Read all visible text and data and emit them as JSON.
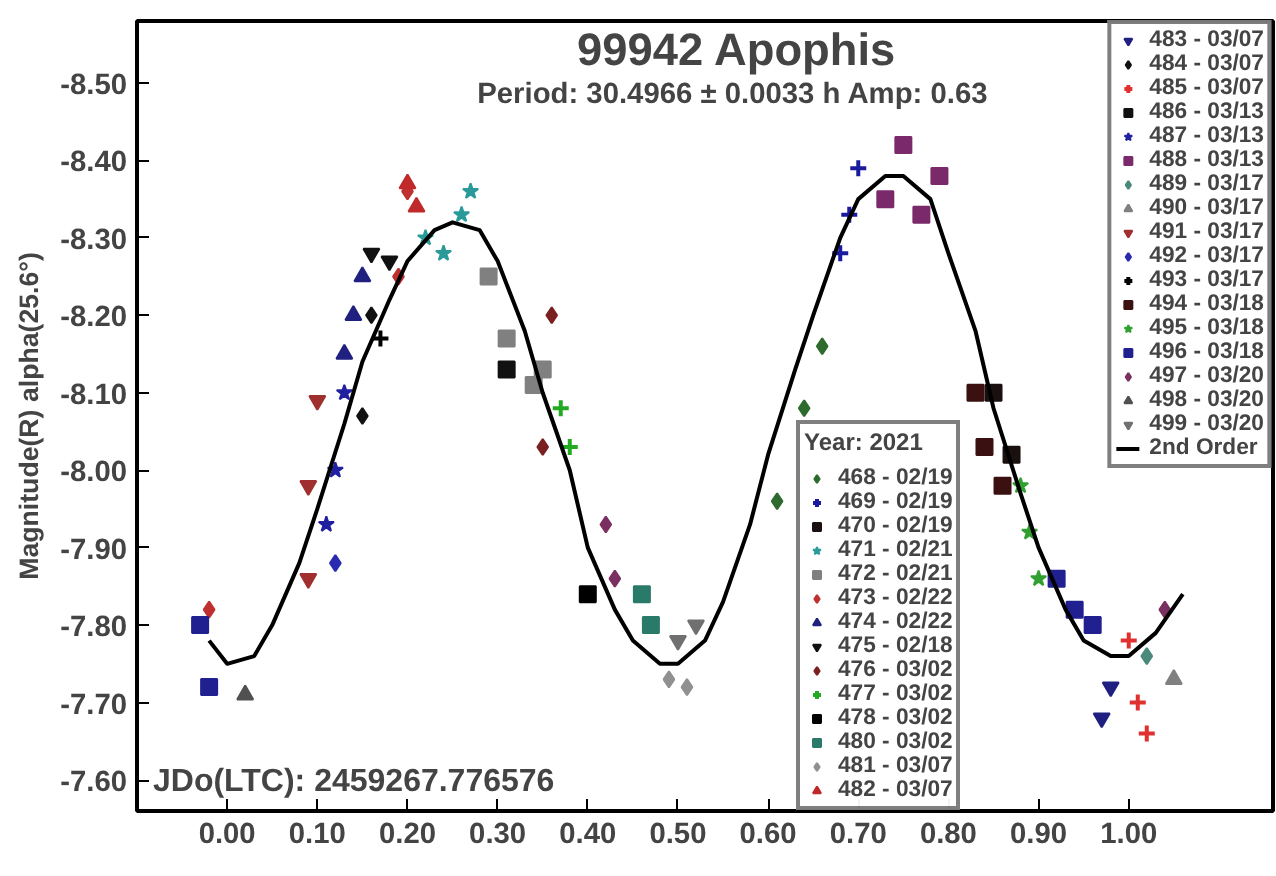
{
  "chart_data": {
    "type": "scatter",
    "title": "99942 Apophis",
    "subtitle": "Period: 30.4966 ± 0.0033 h  Amp: 0.63",
    "ylabel": "Magnitude(R) alpha(25.6°)",
    "legend_title": "Year: 2021",
    "legend": "right",
    "grid": false,
    "annotations": [
      "JDo(LTC): 2459267.776576"
    ],
    "xlim": [
      -0.1,
      1.16
    ],
    "ylim": [
      -7.56,
      -8.58
    ],
    "xticks": [
      {
        "value": 0,
        "label": "0.00"
      },
      {
        "value": 0.1,
        "label": "0.10"
      },
      {
        "value": 0.2,
        "label": "0.20"
      },
      {
        "value": 0.3,
        "label": "0.30"
      },
      {
        "value": 0.4,
        "label": "0.40"
      },
      {
        "value": 0.5,
        "label": "0.50"
      },
      {
        "value": 0.6,
        "label": "0.60"
      },
      {
        "value": 0.7,
        "label": "0.70"
      },
      {
        "value": 0.8,
        "label": "0.80"
      },
      {
        "value": 0.9,
        "label": "0.90"
      },
      {
        "value": 1,
        "label": "1.00"
      }
    ],
    "yticks": [
      {
        "value": -8.5,
        "label": "-8.50"
      },
      {
        "value": -8.4,
        "label": "-8.40"
      },
      {
        "value": -8.3,
        "label": "-8.30"
      },
      {
        "value": -8.2,
        "label": "-8.20"
      },
      {
        "value": -8.1,
        "label": "-8.10"
      },
      {
        "value": -8.0,
        "label": "-8.00"
      },
      {
        "value": -7.9,
        "label": "-7.90"
      },
      {
        "value": -7.8,
        "label": "-7.80"
      },
      {
        "value": -7.7,
        "label": "-7.70"
      },
      {
        "value": -7.6,
        "label": "-7.60"
      }
    ],
    "series": [
      {
        "name": "468 - 02/19",
        "color": "#2e6b2e",
        "marker": "diamond",
        "x": [
          0.61,
          0.64,
          0.66
        ],
        "values": [
          -7.96,
          -8.08,
          -8.16
        ]
      },
      {
        "name": "469 - 02/19",
        "color": "#1a1aa0",
        "marker": "cross",
        "x": [
          0.68,
          0.69,
          0.7
        ],
        "values": [
          -8.28,
          -8.33,
          -8.39
        ]
      },
      {
        "name": "470 - 02/19",
        "color": "#1a1010",
        "marker": "square",
        "x": [
          0.85,
          0.87
        ],
        "values": [
          -8.1,
          -8.02
        ]
      },
      {
        "name": "471 - 02/21",
        "color": "#2a9a9a",
        "marker": "star",
        "x": [
          0.22,
          0.24,
          0.26,
          0.27
        ],
        "values": [
          -8.3,
          -8.28,
          -8.33,
          -8.36
        ]
      },
      {
        "name": "472 - 02/21",
        "color": "#808080",
        "marker": "square",
        "x": [
          0.29,
          0.31,
          0.34,
          0.35
        ],
        "values": [
          -8.25,
          -8.17,
          -8.11,
          -8.13
        ]
      },
      {
        "name": "473 - 02/22",
        "color": "#c03030",
        "marker": "diamond",
        "x": [
          -0.02,
          0.19,
          0.2
        ],
        "values": [
          -7.82,
          -8.25,
          -8.36
        ]
      },
      {
        "name": "474 - 02/22",
        "color": "#202080",
        "marker": "triangle",
        "x": [
          0.13,
          0.14,
          0.15
        ],
        "values": [
          -8.15,
          -8.2,
          -8.25
        ]
      },
      {
        "name": "475 - 02/18",
        "color": "#111111",
        "marker": "triangle_down",
        "x": [
          0.16,
          0.18
        ],
        "values": [
          -8.28,
          -8.27
        ]
      },
      {
        "name": "476 - 03/02",
        "color": "#7a2020",
        "marker": "diamond",
        "x": [
          0.35,
          0.36
        ],
        "values": [
          -8.03,
          -8.2
        ]
      },
      {
        "name": "477 - 03/02",
        "color": "#22aa22",
        "marker": "cross",
        "x": [
          0.37,
          0.38
        ],
        "values": [
          -8.08,
          -8.03
        ]
      },
      {
        "name": "478 - 03/02",
        "color": "#000000",
        "marker": "square",
        "x": [
          0.4
        ],
        "values": [
          -7.84
        ]
      },
      {
        "name": "480 - 03/02",
        "color": "#2a7a6a",
        "marker": "square",
        "x": [
          0.46,
          0.47
        ],
        "values": [
          -7.84,
          -7.8
        ]
      },
      {
        "name": "481 - 03/07",
        "color": "#909090",
        "marker": "diamond",
        "x": [
          0.49,
          0.51
        ],
        "values": [
          -7.73,
          -7.72
        ]
      },
      {
        "name": "482 - 03/07",
        "color": "#c02a2a",
        "marker": "triangle",
        "x": [
          0.2,
          0.21
        ],
        "values": [
          -8.37,
          -8.34
        ]
      },
      {
        "name": "483 - 03/07",
        "color": "#202080",
        "marker": "triangle_down",
        "x": [
          0.97,
          0.98
        ],
        "values": [
          -7.68,
          -7.72
        ]
      },
      {
        "name": "484 - 03/07",
        "color": "#111111",
        "marker": "diamond",
        "x": [
          0.15,
          0.16
        ],
        "values": [
          -8.07,
          -8.2
        ]
      },
      {
        "name": "485 - 03/07",
        "color": "#e03030",
        "marker": "cross",
        "x": [
          1.0,
          1.01,
          1.02
        ],
        "values": [
          -7.78,
          -7.7,
          -7.66
        ]
      },
      {
        "name": "486 - 03/13",
        "color": "#111111",
        "marker": "square",
        "x": [
          0.31
        ],
        "values": [
          -8.13
        ]
      },
      {
        "name": "487 - 03/13",
        "color": "#2020a0",
        "marker": "star",
        "x": [
          0.11,
          0.12,
          0.13
        ],
        "values": [
          -7.93,
          -8.0,
          -8.1
        ]
      },
      {
        "name": "488 - 03/13",
        "color": "#7a2a6a",
        "marker": "square",
        "x": [
          0.73,
          0.75,
          0.77,
          0.79
        ],
        "values": [
          -8.35,
          -8.42,
          -8.33,
          -8.38
        ]
      },
      {
        "name": "489 - 03/17",
        "color": "#4a8a7a",
        "marker": "diamond",
        "x": [
          1.02
        ],
        "values": [
          -7.76
        ]
      },
      {
        "name": "490 - 03/17",
        "color": "#808080",
        "marker": "triangle",
        "x": [
          1.05
        ],
        "values": [
          -7.73
        ]
      },
      {
        "name": "491 - 03/17",
        "color": "#a03030",
        "marker": "triangle_down",
        "x": [
          0.09,
          0.09,
          0.1
        ],
        "values": [
          -7.86,
          -7.98,
          -8.09
        ]
      },
      {
        "name": "492 - 03/17",
        "color": "#2a2ab0",
        "marker": "diamond",
        "x": [
          0.12
        ],
        "values": [
          -7.88
        ]
      },
      {
        "name": "493 - 03/17",
        "color": "#000000",
        "marker": "cross",
        "x": [
          0.17
        ],
        "values": [
          -8.17
        ]
      },
      {
        "name": "494 - 03/18",
        "color": "#3a1010",
        "marker": "square",
        "x": [
          0.83,
          0.84,
          0.86
        ],
        "values": [
          -8.1,
          -8.03,
          -7.98
        ]
      },
      {
        "name": "495 - 03/18",
        "color": "#30a030",
        "marker": "star",
        "x": [
          0.88,
          0.89,
          0.9
        ],
        "values": [
          -7.98,
          -7.92,
          -7.86
        ]
      },
      {
        "name": "496 - 03/18",
        "color": "#202090",
        "marker": "square",
        "x": [
          -0.03,
          -0.02,
          0.92,
          0.94,
          0.96
        ],
        "values": [
          -7.8,
          -7.72,
          -7.86,
          -7.82,
          -7.8
        ]
      },
      {
        "name": "497 - 03/20",
        "color": "#7a3060",
        "marker": "diamond",
        "x": [
          0.42,
          0.43,
          1.04
        ],
        "values": [
          -7.93,
          -7.86,
          -7.82
        ]
      },
      {
        "name": "498 - 03/20",
        "color": "#505050",
        "marker": "triangle",
        "x": [
          0.02
        ],
        "values": [
          -7.71
        ]
      },
      {
        "name": "499 - 03/20",
        "color": "#707070",
        "marker": "triangle_down",
        "x": [
          0.5,
          0.52
        ],
        "values": [
          -7.78,
          -7.8
        ]
      },
      {
        "name": "2nd Order",
        "type": "line",
        "color": "#000000",
        "x": [
          -0.02,
          0.0,
          0.03,
          0.05,
          0.08,
          0.1,
          0.13,
          0.15,
          0.18,
          0.2,
          0.23,
          0.25,
          0.28,
          0.3,
          0.33,
          0.35,
          0.38,
          0.4,
          0.43,
          0.45,
          0.48,
          0.5,
          0.53,
          0.55,
          0.58,
          0.6,
          0.63,
          0.65,
          0.68,
          0.7,
          0.73,
          0.75,
          0.78,
          0.8,
          0.83,
          0.85,
          0.88,
          0.9,
          0.93,
          0.95,
          0.98,
          1.0,
          1.03,
          1.06
        ],
        "values": [
          -7.78,
          -7.75,
          -7.76,
          -7.8,
          -7.88,
          -7.95,
          -8.06,
          -8.14,
          -8.22,
          -8.27,
          -8.31,
          -8.32,
          -8.31,
          -8.27,
          -8.18,
          -8.1,
          -8.0,
          -7.9,
          -7.82,
          -7.78,
          -7.75,
          -7.75,
          -7.78,
          -7.83,
          -7.93,
          -8.02,
          -8.13,
          -8.2,
          -8.3,
          -8.35,
          -8.38,
          -8.38,
          -8.35,
          -8.28,
          -8.18,
          -8.08,
          -7.97,
          -7.9,
          -7.82,
          -7.78,
          -7.76,
          -7.76,
          -7.79,
          -7.84
        ]
      }
    ]
  }
}
